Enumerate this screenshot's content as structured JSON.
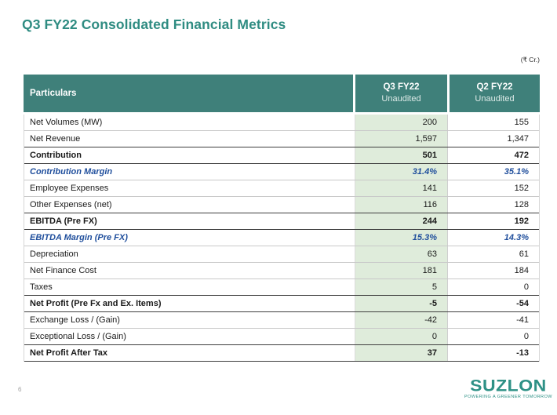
{
  "page": {
    "title": "Q3 FY22 Consolidated Financial Metrics",
    "unit_label": "(₹ Cr.)",
    "page_number": "6"
  },
  "logo": {
    "brand": "SUZLON",
    "tagline": "POWERING A GREENER TOMORROW"
  },
  "colors": {
    "teal_title": "#2F8C82",
    "teal_header": "#3F807A",
    "teal_logo": "#2E9186",
    "green_col": "#DFECDB",
    "blue_margin": "#1F4E9C"
  },
  "table": {
    "columns": [
      {
        "label": "Particulars",
        "sublabel": ""
      },
      {
        "label": "Q3 FY22",
        "sublabel": "Unaudited"
      },
      {
        "label": "Q2 FY22",
        "sublabel": "Unaudited"
      }
    ],
    "rows": [
      {
        "label": "Net Volumes (MW)",
        "q3": "200",
        "q2": "155",
        "style": "normal"
      },
      {
        "label": "Net Revenue",
        "q3": "1,597",
        "q2": "1,347",
        "style": "normal"
      },
      {
        "label": "Contribution",
        "q3": "501",
        "q2": "472",
        "style": "bold"
      },
      {
        "label": "Contribution Margin",
        "q3": "31.4%",
        "q2": "35.1%",
        "style": "margin"
      },
      {
        "label": "Employee Expenses",
        "q3": "141",
        "q2": "152",
        "style": "normal"
      },
      {
        "label": "Other Expenses (net)",
        "q3": "116",
        "q2": "128",
        "style": "normal"
      },
      {
        "label": "EBITDA (Pre FX)",
        "q3": "244",
        "q2": "192",
        "style": "bold"
      },
      {
        "label": "EBITDA Margin (Pre FX)",
        "q3": "15.3%",
        "q2": "14.3%",
        "style": "margin"
      },
      {
        "label": "Depreciation",
        "q3": "63",
        "q2": "61",
        "style": "normal"
      },
      {
        "label": "Net Finance Cost",
        "q3": "181",
        "q2": "184",
        "style": "normal"
      },
      {
        "label": "Taxes",
        "q3": "5",
        "q2": "0",
        "style": "normal"
      },
      {
        "label": "Net Profit (Pre Fx and Ex. Items)",
        "q3": "-5",
        "q2": "-54",
        "style": "bold"
      },
      {
        "label": "Exchange Loss / (Gain)",
        "q3": "-42",
        "q2": "-41",
        "style": "normal"
      },
      {
        "label": "Exceptional Loss / (Gain)",
        "q3": "0",
        "q2": "0",
        "style": "normal"
      },
      {
        "label": "Net Profit After Tax",
        "q3": "37",
        "q2": "-13",
        "style": "bold"
      }
    ]
  },
  "chart_data": {
    "type": "table",
    "title": "Q3 FY22 Consolidated Financial Metrics",
    "unit": "₹ Cr.",
    "columns": [
      "Particulars",
      "Q3 FY22 Unaudited",
      "Q2 FY22 Unaudited"
    ],
    "rows": [
      [
        "Net Volumes (MW)",
        "200",
        "155"
      ],
      [
        "Net Revenue",
        "1,597",
        "1,347"
      ],
      [
        "Contribution",
        "501",
        "472"
      ],
      [
        "Contribution Margin",
        "31.4%",
        "35.1%"
      ],
      [
        "Employee Expenses",
        "141",
        "152"
      ],
      [
        "Other Expenses (net)",
        "116",
        "128"
      ],
      [
        "EBITDA (Pre FX)",
        "244",
        "192"
      ],
      [
        "EBITDA Margin (Pre FX)",
        "15.3%",
        "14.3%"
      ],
      [
        "Depreciation",
        "63",
        "61"
      ],
      [
        "Net Finance Cost",
        "181",
        "184"
      ],
      [
        "Taxes",
        "5",
        "0"
      ],
      [
        "Net Profit (Pre Fx and Ex. Items)",
        "-5",
        "-54"
      ],
      [
        "Exchange Loss / (Gain)",
        "-42",
        "-41"
      ],
      [
        "Exceptional Loss / (Gain)",
        "0",
        "0"
      ],
      [
        "Net Profit After Tax",
        "37",
        "-13"
      ]
    ]
  }
}
